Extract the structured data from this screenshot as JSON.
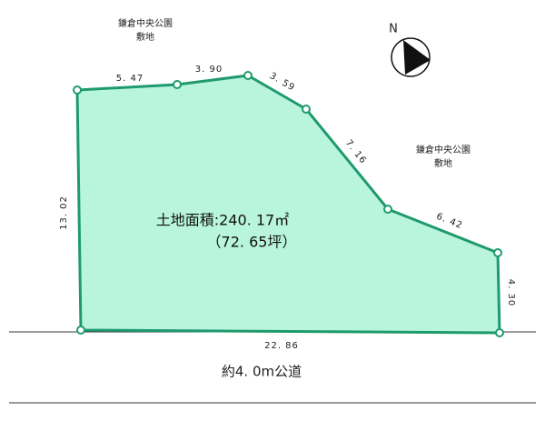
{
  "north": "N",
  "park_top": {
    "line1": "鎌倉中央公園",
    "line2": "敷地"
  },
  "park_right": {
    "line1": "鎌倉中央公園",
    "line2": "敷地"
  },
  "edges": {
    "top_left": "5. 47",
    "top_mid": "3. 90",
    "top_right": "3. 59",
    "diagonal": "7. 16",
    "right_slope": "6. 42",
    "right": "4. 30",
    "bottom": "22. 86",
    "left": "13. 02"
  },
  "area": {
    "sqm": "土地面積:240. 17㎡",
    "tsubo": "（72. 65坪）"
  },
  "road": "約4. 0m公道"
}
